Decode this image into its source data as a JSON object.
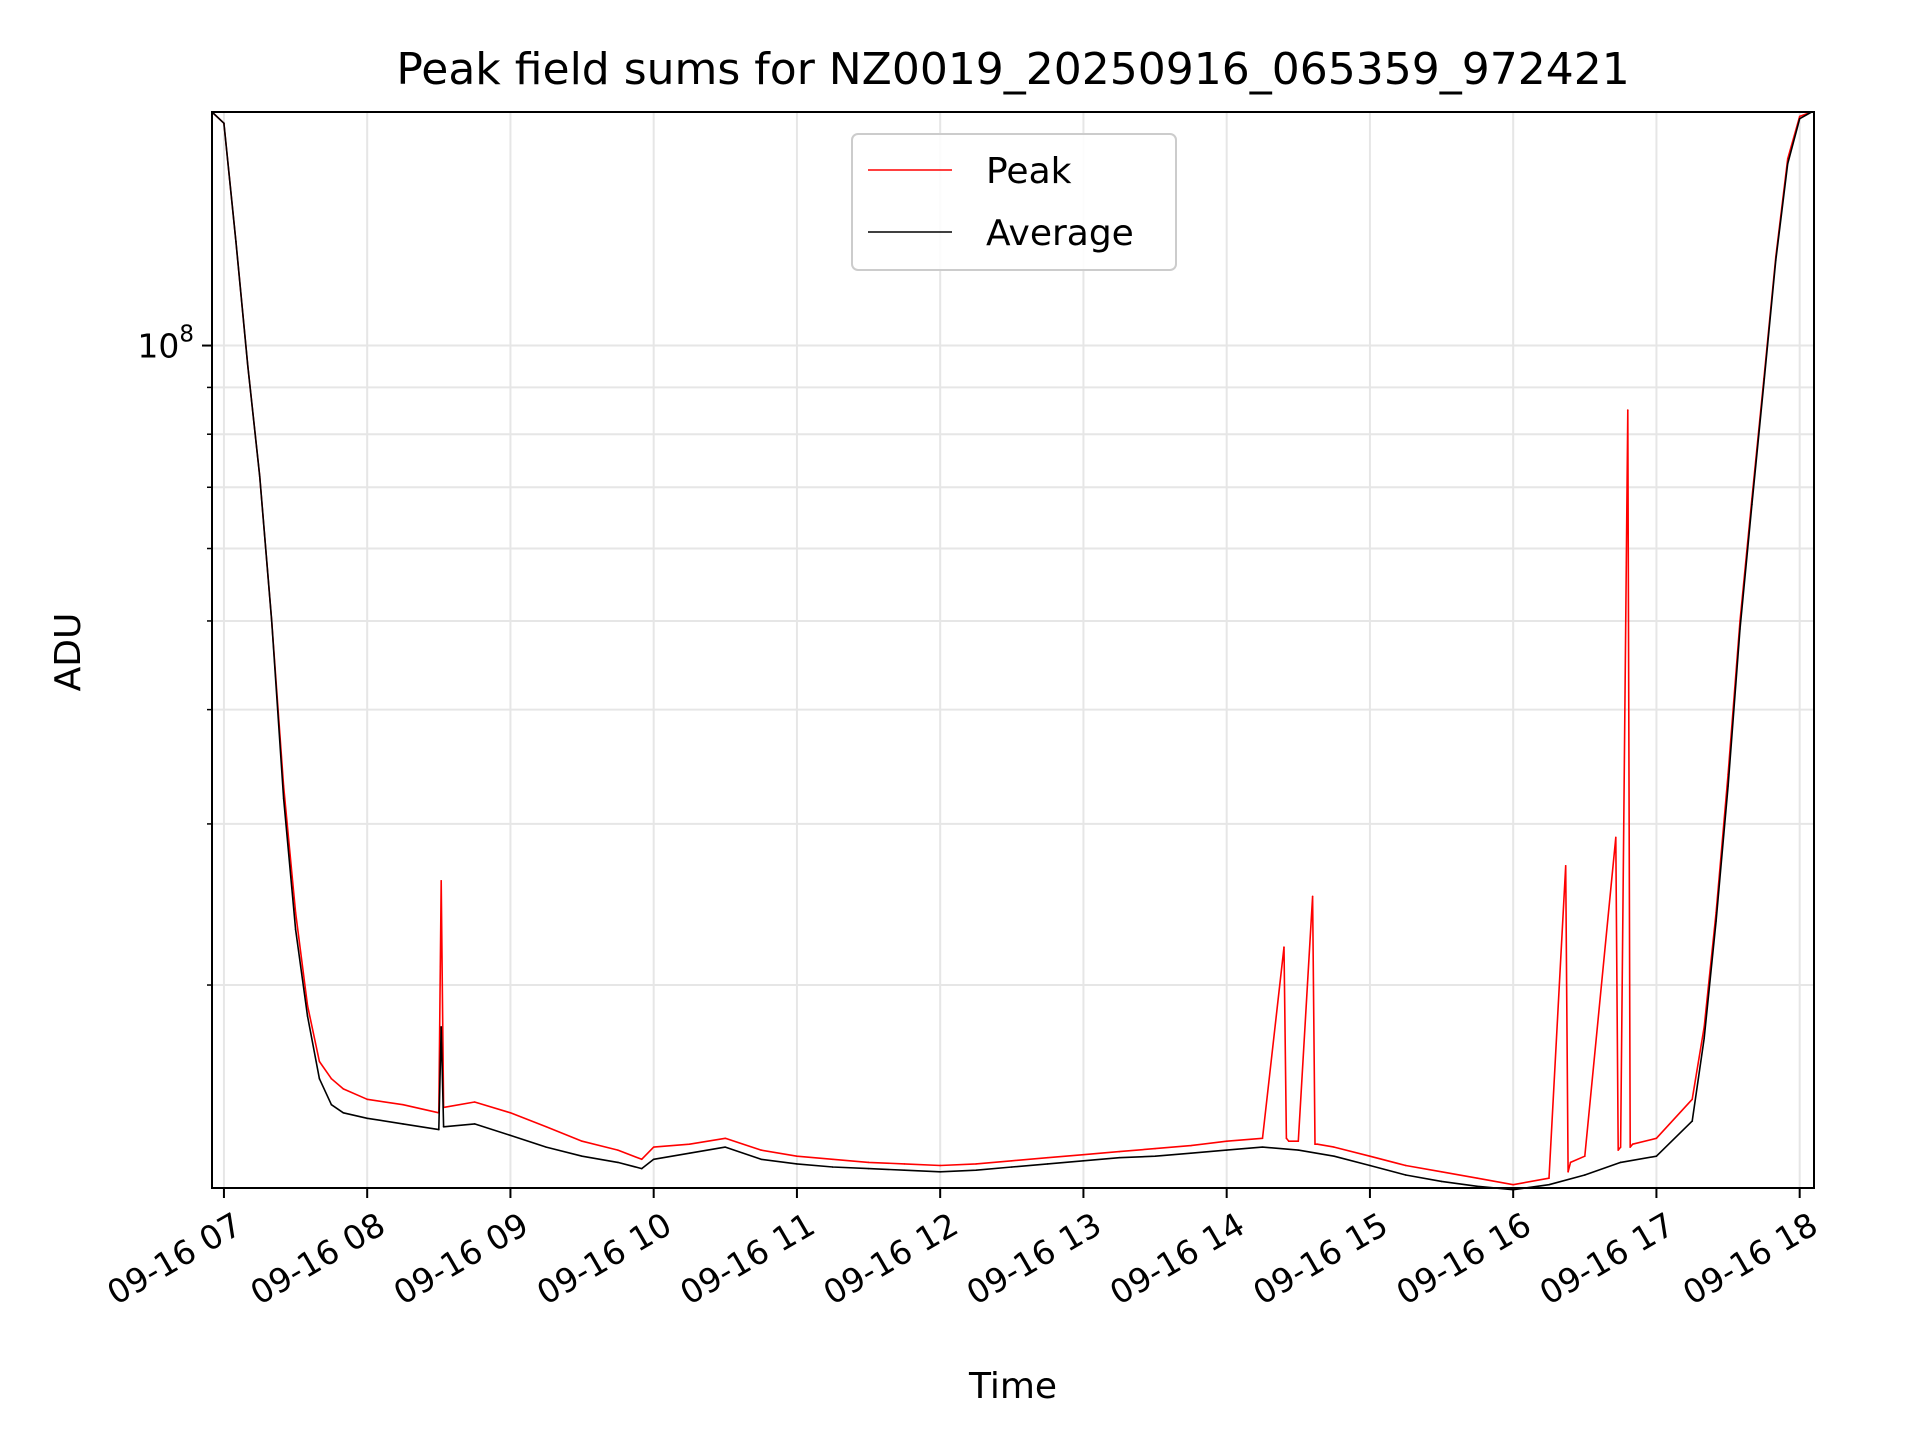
{
  "chart_data": {
    "type": "line",
    "title": "Peak field sums for NZ0019_20250916_065359_972421",
    "xlabel": "Time",
    "ylabel": "ADU",
    "y_scale": "log",
    "ylim": [
      12000000,
      180000000
    ],
    "xlim": [
      "09-16 06:55",
      "09-16 18:06"
    ],
    "grid": true,
    "legend_position": "upper center",
    "x_ticks": [
      "09-16 07",
      "09-16 08",
      "09-16 09",
      "09-16 10",
      "09-16 11",
      "09-16 12",
      "09-16 13",
      "09-16 14",
      "09-16 15",
      "09-16 16",
      "09-16 17",
      "09-16 18"
    ],
    "y_tick_major": {
      "value": 100000000,
      "base": "10",
      "exp": "8"
    },
    "y_minor_ticks": [
      20000000,
      30000000,
      40000000,
      50000000,
      60000000,
      70000000,
      80000000,
      90000000
    ],
    "series": [
      {
        "name": "Peak",
        "color": "#ff0000",
        "x": [
          "06:55",
          "07:00",
          "07:05",
          "07:10",
          "07:15",
          "07:20",
          "07:25",
          "07:30",
          "07:35",
          "07:40",
          "07:45",
          "07:50",
          "08:00",
          "08:15",
          "08:30",
          "08:31",
          "08:32",
          "08:45",
          "09:00",
          "09:15",
          "09:30",
          "09:45",
          "09:55",
          "10:00",
          "10:15",
          "10:30",
          "10:45",
          "11:00",
          "11:15",
          "11:30",
          "11:45",
          "12:00",
          "12:15",
          "12:30",
          "12:45",
          "13:00",
          "13:15",
          "13:30",
          "13:45",
          "14:00",
          "14:15",
          "14:24",
          "14:25",
          "14:26",
          "14:30",
          "14:36",
          "14:37",
          "14:38",
          "14:45",
          "15:00",
          "15:15",
          "15:30",
          "15:45",
          "16:00",
          "16:15",
          "16:22",
          "16:23",
          "16:24",
          "16:30",
          "16:43",
          "16:44",
          "16:45",
          "16:48",
          "16:49",
          "16:50",
          "17:00",
          "17:15",
          "17:20",
          "17:25",
          "17:30",
          "17:35",
          "17:40",
          "17:45",
          "17:50",
          "17:55",
          "18:00",
          "18:05"
        ],
        "values": [
          180000000,
          175000000,
          130000000,
          95000000,
          72000000,
          50000000,
          33000000,
          24000000,
          19000000,
          16500000,
          15800000,
          15400000,
          15000000,
          14800000,
          14500000,
          26000000,
          14700000,
          14900000,
          14500000,
          14000000,
          13500000,
          13200000,
          12900000,
          13300000,
          13400000,
          13600000,
          13200000,
          13000000,
          12900000,
          12800000,
          12750000,
          12700000,
          12750000,
          12850000,
          12950000,
          13050000,
          13150000,
          13250000,
          13350000,
          13500000,
          13600000,
          22000000,
          13600000,
          13500000,
          13500000,
          25000000,
          13400000,
          13400000,
          13300000,
          13000000,
          12700000,
          12500000,
          12300000,
          12100000,
          12300000,
          27000000,
          12500000,
          12800000,
          13000000,
          29000000,
          13200000,
          13300000,
          85000000,
          13300000,
          13400000,
          13600000,
          15000000,
          18000000,
          24000000,
          34000000,
          50000000,
          68000000,
          92000000,
          125000000,
          160000000,
          178000000,
          180000000
        ]
      },
      {
        "name": "Average",
        "color": "#000000",
        "x": [
          "06:55",
          "07:00",
          "07:05",
          "07:10",
          "07:15",
          "07:20",
          "07:25",
          "07:30",
          "07:35",
          "07:40",
          "07:45",
          "07:50",
          "08:00",
          "08:15",
          "08:30",
          "08:31",
          "08:32",
          "08:45",
          "09:00",
          "09:15",
          "09:30",
          "09:45",
          "09:55",
          "10:00",
          "10:15",
          "10:30",
          "10:45",
          "11:00",
          "11:15",
          "11:30",
          "11:45",
          "12:00",
          "12:15",
          "12:30",
          "12:45",
          "13:00",
          "13:15",
          "13:30",
          "13:45",
          "14:00",
          "14:15",
          "14:30",
          "14:45",
          "15:00",
          "15:15",
          "15:30",
          "15:45",
          "16:00",
          "16:15",
          "16:30",
          "16:45",
          "17:00",
          "17:15",
          "17:20",
          "17:25",
          "17:30",
          "17:35",
          "17:40",
          "17:45",
          "17:50",
          "17:55",
          "18:00",
          "18:05"
        ],
        "values": [
          180000000,
          175000000,
          130000000,
          95000000,
          72000000,
          50000000,
          32000000,
          23000000,
          18500000,
          15800000,
          14800000,
          14500000,
          14300000,
          14100000,
          13900000,
          18000000,
          14000000,
          14100000,
          13700000,
          13300000,
          13000000,
          12800000,
          12600000,
          12900000,
          13100000,
          13300000,
          12900000,
          12750000,
          12650000,
          12600000,
          12550000,
          12500000,
          12550000,
          12650000,
          12750000,
          12850000,
          12950000,
          13000000,
          13100000,
          13200000,
          13300000,
          13200000,
          13000000,
          12700000,
          12400000,
          12200000,
          12050000,
          11950000,
          12100000,
          12400000,
          12800000,
          13000000,
          14200000,
          17500000,
          23500000,
          33000000,
          49000000,
          67000000,
          91000000,
          124000000,
          158000000,
          177000000,
          180000000
        ]
      }
    ]
  }
}
